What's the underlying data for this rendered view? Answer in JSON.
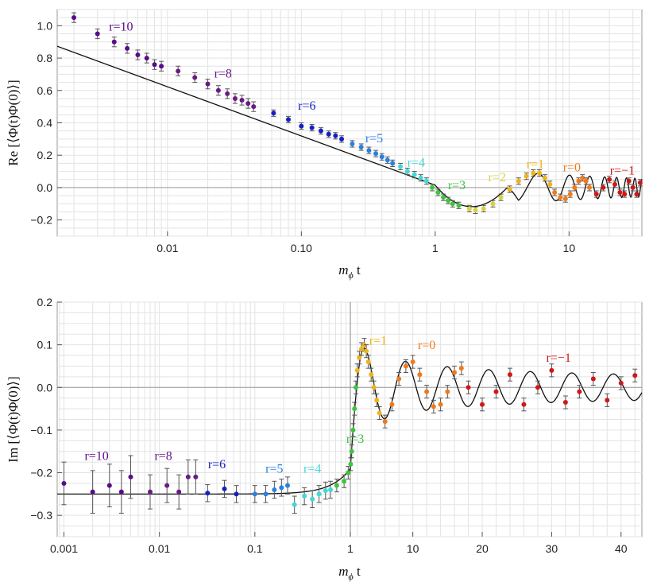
{
  "chart_data": [
    {
      "type": "scatter",
      "ylabel": "Re [⟨Φ(t)Φ(0)⟩]",
      "xlabel_main": "m",
      "xlabel_sub": "ϕ",
      "xlabel_tail": " t",
      "xscale": "log",
      "xlim": [
        0.0015,
        35
      ],
      "ylim": [
        -0.3,
        1.1
      ],
      "grid": true,
      "xticks": [
        {
          "value": 0.01,
          "label": "0.01"
        },
        {
          "value": 0.1,
          "label": "0.10"
        },
        {
          "value": 1,
          "label": "1"
        },
        {
          "value": 10,
          "label": "10"
        }
      ],
      "yticks": [
        {
          "value": -0.2,
          "label": "−0.2"
        },
        {
          "value": 0.0,
          "label": "0.0"
        },
        {
          "value": 0.2,
          "label": "0.2"
        },
        {
          "value": 0.4,
          "label": "0.4"
        },
        {
          "value": 0.6,
          "label": "0.6"
        },
        {
          "value": 0.8,
          "label": "0.8"
        },
        {
          "value": 1.0,
          "label": "1.0"
        }
      ],
      "series": [
        {
          "name": "r=10",
          "color": "#5b0a8a",
          "x": [
            0.002,
            0.003,
            0.004,
            0.005,
            0.006,
            0.007,
            0.008,
            0.009
          ],
          "y": [
            1.05,
            0.95,
            0.9,
            0.86,
            0.82,
            0.8,
            0.76,
            0.75
          ],
          "err": [
            0.03,
            0.03,
            0.03,
            0.03,
            0.03,
            0.03,
            0.03,
            0.03
          ]
        },
        {
          "name": "r=8",
          "color": "#6a1a85",
          "x": [
            0.012,
            0.016,
            0.02,
            0.024,
            0.028,
            0.032,
            0.036,
            0.04,
            0.044
          ],
          "y": [
            0.72,
            0.68,
            0.64,
            0.6,
            0.58,
            0.55,
            0.54,
            0.52,
            0.5
          ],
          "err": [
            0.03,
            0.03,
            0.03,
            0.03,
            0.03,
            0.03,
            0.03,
            0.03,
            0.03
          ]
        },
        {
          "name": "r=6",
          "color": "#1520c0",
          "x": [
            0.062,
            0.08,
            0.1,
            0.12,
            0.14,
            0.16,
            0.18,
            0.2
          ],
          "y": [
            0.46,
            0.42,
            0.38,
            0.37,
            0.35,
            0.33,
            0.32,
            0.3
          ],
          "err": [
            0.02,
            0.02,
            0.02,
            0.02,
            0.02,
            0.02,
            0.02,
            0.02
          ]
        },
        {
          "name": "r=5",
          "color": "#2a7fe0",
          "x": [
            0.24,
            0.28,
            0.32,
            0.36,
            0.4,
            0.44,
            0.48
          ],
          "y": [
            0.27,
            0.25,
            0.23,
            0.21,
            0.19,
            0.17,
            0.15
          ],
          "err": [
            0.02,
            0.02,
            0.02,
            0.02,
            0.02,
            0.02,
            0.02
          ]
        },
        {
          "name": "r=4",
          "color": "#45d6d6",
          "x": [
            0.55,
            0.62,
            0.7,
            0.78,
            0.86
          ],
          "y": [
            0.13,
            0.1,
            0.08,
            0.06,
            0.04
          ],
          "err": [
            0.02,
            0.02,
            0.02,
            0.02,
            0.02
          ]
        },
        {
          "name": "r=3",
          "color": "#3ec43e",
          "x": [
            0.95,
            1.05,
            1.15,
            1.25,
            1.35,
            1.5
          ],
          "y": [
            0.0,
            -0.03,
            -0.06,
            -0.08,
            -0.1,
            -0.11
          ],
          "err": [
            0.02,
            0.02,
            0.02,
            0.02,
            0.02,
            0.02
          ]
        },
        {
          "name": "r=2",
          "color": "#d8d23a",
          "x": [
            1.8,
            2.0,
            2.3,
            2.7,
            3.1
          ],
          "y": [
            -0.13,
            -0.14,
            -0.13,
            -0.1,
            -0.06
          ],
          "err": [
            0.02,
            0.02,
            0.02,
            0.02,
            0.02
          ]
        },
        {
          "name": "r=1",
          "color": "#f0b418",
          "x": [
            3.6,
            4.2,
            4.8,
            5.4,
            6.0,
            6.6,
            7.2
          ],
          "y": [
            -0.01,
            0.04,
            0.07,
            0.09,
            0.09,
            0.06,
            0.02
          ],
          "err": [
            0.02,
            0.02,
            0.02,
            0.02,
            0.02,
            0.02,
            0.02
          ]
        },
        {
          "name": "r=0",
          "color": "#f07a1a",
          "x": [
            7.8,
            8.6,
            9.4,
            10.2,
            11.0,
            11.8,
            12.6,
            13.4,
            14.2
          ],
          "y": [
            -0.03,
            -0.06,
            -0.07,
            -0.04,
            0.0,
            0.04,
            0.06,
            0.04,
            0.0
          ],
          "err": [
            0.02,
            0.02,
            0.02,
            0.02,
            0.02,
            0.02,
            0.02,
            0.02,
            0.02
          ]
        },
        {
          "name": "r=−1",
          "color": "#d01818",
          "x": [
            16,
            18,
            20,
            22,
            24,
            26,
            28,
            30,
            32,
            34
          ],
          "y": [
            -0.04,
            0.0,
            0.05,
            0.02,
            -0.03,
            -0.04,
            0.04,
            0.0,
            -0.04,
            0.03
          ],
          "err": [
            0.02,
            0.02,
            0.02,
            0.02,
            0.02,
            0.02,
            0.02,
            0.02,
            0.02,
            0.02
          ]
        }
      ],
      "labels": [
        {
          "text": "r=10",
          "color": "#5b0a8a",
          "x": 0.0045,
          "y": 0.97
        },
        {
          "text": "r=8",
          "color": "#6a1a85",
          "x": 0.026,
          "y": 0.68
        },
        {
          "text": "r=6",
          "color": "#1520c0",
          "x": 0.11,
          "y": 0.48
        },
        {
          "text": "r=5",
          "color": "#2a7fe0",
          "x": 0.35,
          "y": 0.28
        },
        {
          "text": "r=4",
          "color": "#45d6d6",
          "x": 0.72,
          "y": 0.13
        },
        {
          "text": "r=3",
          "color": "#3ec43e",
          "x": 1.45,
          "y": -0.01
        },
        {
          "text": "r=2",
          "color": "#d8d23a",
          "x": 2.9,
          "y": 0.04
        },
        {
          "text": "r=1",
          "color": "#f0b418",
          "x": 5.6,
          "y": 0.12
        },
        {
          "text": "r=0",
          "color": "#f07a1a",
          "x": 10.5,
          "y": 0.1
        },
        {
          "text": "r=−1",
          "color": "#d01818",
          "x": 25,
          "y": 0.08
        }
      ]
    },
    {
      "type": "scatter",
      "ylabel": "Im [⟨Φ(t)Φ(0)⟩]",
      "xlabel_main": "m",
      "xlabel_sub": "ϕ",
      "xlabel_tail": " t",
      "xscale": "log below 1, linear above 1",
      "xlim": [
        0.00085,
        43
      ],
      "ylim": [
        -0.35,
        0.2
      ],
      "grid": true,
      "xticks": [
        {
          "value": 0.001,
          "label": "0.001"
        },
        {
          "value": 0.01,
          "label": "0.01"
        },
        {
          "value": 0.1,
          "label": "0.1"
        },
        {
          "value": 1,
          "label": "1"
        },
        {
          "value": 10,
          "label": "10"
        },
        {
          "value": 20,
          "label": "20"
        },
        {
          "value": 30,
          "label": "30"
        },
        {
          "value": 40,
          "label": "40"
        }
      ],
      "yticks": [
        {
          "value": -0.3,
          "label": "−0.3"
        },
        {
          "value": -0.2,
          "label": "−0.2"
        },
        {
          "value": -0.1,
          "label": "−0.1"
        },
        {
          "value": 0.0,
          "label": "0.0"
        },
        {
          "value": 0.1,
          "label": "0.1"
        },
        {
          "value": 0.2,
          "label": "0.2"
        }
      ],
      "series": [
        {
          "name": "r=10",
          "color": "#5b0a8a",
          "x": [
            0.001,
            0.002,
            0.003,
            0.004,
            0.005
          ],
          "y": [
            -0.225,
            -0.245,
            -0.23,
            -0.245,
            -0.21
          ],
          "err": [
            0.05,
            0.05,
            0.05,
            0.05,
            0.05
          ]
        },
        {
          "name": "r=8",
          "color": "#6a1a85",
          "x": [
            0.008,
            0.012,
            0.016,
            0.02,
            0.024
          ],
          "y": [
            -0.245,
            -0.23,
            -0.245,
            -0.21,
            -0.21
          ],
          "err": [
            0.04,
            0.04,
            0.04,
            0.04,
            0.04
          ]
        },
        {
          "name": "r=6",
          "color": "#1520c0",
          "x": [
            0.032,
            0.048,
            0.064
          ],
          "y": [
            -0.248,
            -0.238,
            -0.25
          ],
          "err": [
            0.02,
            0.02,
            0.02
          ]
        },
        {
          "name": "r=5",
          "color": "#2a7fe0",
          "x": [
            0.1,
            0.13,
            0.16,
            0.19,
            0.22
          ],
          "y": [
            -0.25,
            -0.25,
            -0.24,
            -0.235,
            -0.23
          ],
          "err": [
            0.02,
            0.02,
            0.02,
            0.02,
            0.02
          ]
        },
        {
          "name": "r=4",
          "color": "#45d6d6",
          "x": [
            0.26,
            0.33,
            0.4,
            0.47,
            0.55,
            0.62
          ],
          "y": [
            -0.275,
            -0.255,
            -0.262,
            -0.25,
            -0.242,
            -0.24
          ],
          "err": [
            0.02,
            0.02,
            0.02,
            0.02,
            0.02,
            0.02
          ]
        },
        {
          "name": "r=3",
          "color": "#3ec43e",
          "x": [
            0.72,
            0.86,
            0.95,
            1.05,
            1.2,
            1.4,
            1.6,
            1.8
          ],
          "y": [
            -0.23,
            -0.22,
            -0.2,
            -0.18,
            -0.15,
            -0.1,
            -0.05,
            0.0
          ],
          "err": [
            0.015,
            0.015,
            0.015,
            0.015,
            0.015,
            0.015,
            0.015,
            0.015
          ]
        },
        {
          "name": "r=1",
          "color": "#f0b418",
          "x": [
            2.0,
            2.3,
            2.6,
            3.0,
            3.3,
            3.6,
            4.0,
            4.4,
            4.8,
            5.2
          ],
          "y": [
            0.04,
            0.07,
            0.09,
            0.1,
            0.085,
            0.06,
            0.03,
            0.0,
            -0.03,
            -0.06
          ],
          "err": [
            0.015,
            0.015,
            0.015,
            0.015,
            0.015,
            0.015,
            0.015,
            0.015,
            0.015,
            0.015
          ]
        },
        {
          "name": "r=0",
          "color": "#f07a1a",
          "x": [
            6.0,
            7.0,
            8.0,
            9.0,
            10.0,
            11.0,
            12.0,
            13.0,
            14.0,
            15.0,
            16.0,
            17.0
          ],
          "y": [
            -0.08,
            -0.04,
            0.02,
            0.05,
            0.06,
            0.03,
            -0.01,
            -0.045,
            -0.04,
            -0.01,
            0.035,
            0.045
          ],
          "err": [
            0.015,
            0.015,
            0.015,
            0.015,
            0.015,
            0.015,
            0.015,
            0.015,
            0.015,
            0.015,
            0.015,
            0.015
          ]
        },
        {
          "name": "r=−1",
          "color": "#d01818",
          "x": [
            18,
            20,
            22,
            24,
            26,
            28,
            30,
            32,
            34,
            36,
            38,
            40,
            42
          ],
          "y": [
            0.0,
            -0.04,
            -0.01,
            0.03,
            -0.04,
            0.0,
            0.04,
            -0.035,
            -0.01,
            0.02,
            -0.03,
            0.01,
            0.028
          ],
          "err": [
            0.015,
            0.015,
            0.015,
            0.015,
            0.015,
            0.015,
            0.015,
            0.015,
            0.015,
            0.015,
            0.015,
            0.015,
            0.015
          ]
        }
      ],
      "labels": [
        {
          "text": "r=10",
          "color": "#5b0a8a",
          "x": 0.0022,
          "y": -0.17
        },
        {
          "text": "r=8",
          "color": "#6a1a85",
          "x": 0.011,
          "y": -0.17
        },
        {
          "text": "r=6",
          "color": "#1520c0",
          "x": 0.04,
          "y": -0.19
        },
        {
          "text": "r=5",
          "color": "#2a7fe0",
          "x": 0.16,
          "y": -0.2
        },
        {
          "text": "r=4",
          "color": "#45d6d6",
          "x": 0.4,
          "y": -0.2
        },
        {
          "text": "r=3",
          "color": "#3ec43e",
          "x": 1.7,
          "y": -0.13
        },
        {
          "text": "r=1",
          "color": "#f0b418",
          "x": 5.0,
          "y": 0.1
        },
        {
          "text": "r=0",
          "color": "#f07a1a",
          "x": 12.0,
          "y": 0.09
        },
        {
          "text": "r=−1",
          "color": "#d01818",
          "x": 31.0,
          "y": 0.06
        }
      ]
    }
  ]
}
